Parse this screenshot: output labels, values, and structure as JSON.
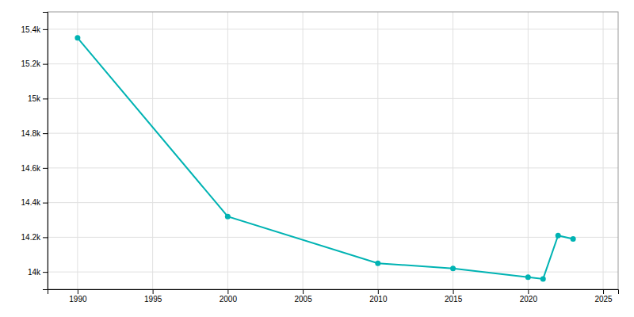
{
  "chart_data": {
    "type": "line",
    "x": [
      1990,
      2000,
      2010,
      2015,
      2020,
      2021,
      2022,
      2023
    ],
    "values": [
      15350,
      14320,
      14050,
      14020,
      13970,
      13960,
      14210,
      14190
    ],
    "color": "#00b3b3",
    "marker": "circle",
    "xlim": [
      1988,
      2026
    ],
    "ylim": [
      13900,
      15500
    ],
    "xticks": [
      1990,
      1995,
      2000,
      2005,
      2010,
      2015,
      2020,
      2025
    ],
    "yticks": [
      {
        "value": 14000,
        "label": "14k"
      },
      {
        "value": 14200,
        "label": "14.2k"
      },
      {
        "value": 14400,
        "label": "14.4k"
      },
      {
        "value": 14600,
        "label": "14.6k"
      },
      {
        "value": 14800,
        "label": "14.8k"
      },
      {
        "value": 15000,
        "label": "15k"
      },
      {
        "value": 15200,
        "label": "15.2k"
      },
      {
        "value": 15400,
        "label": "15.4k"
      }
    ],
    "grid": true
  }
}
